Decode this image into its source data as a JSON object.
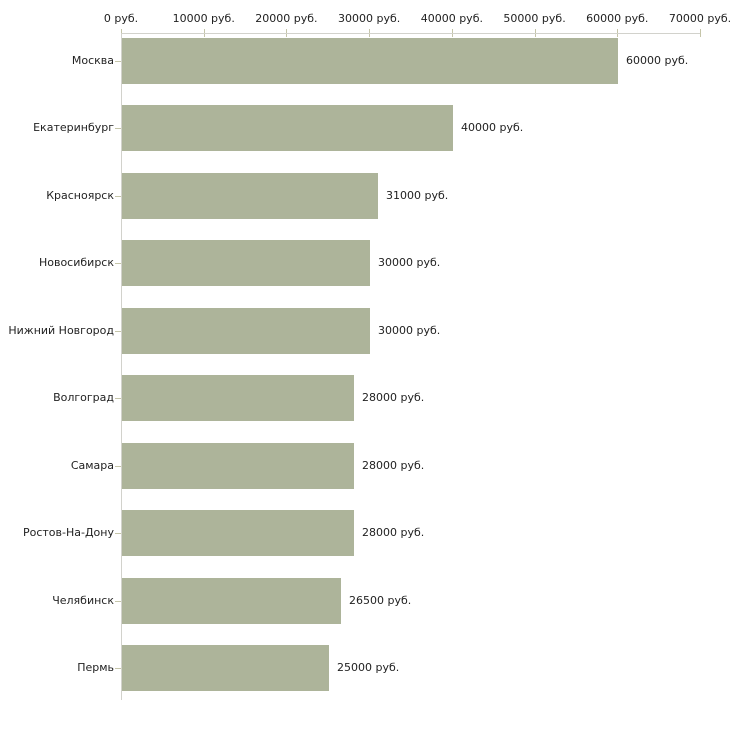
{
  "chart_data": {
    "type": "bar",
    "orientation": "horizontal",
    "title": "",
    "xlabel": "",
    "ylabel": "",
    "categories": [
      "Москва",
      "Екатеринбург",
      "Красноярск",
      "Новосибирск",
      "Нижний Новгород",
      "Волгоград",
      "Самара",
      "Ростов-На-Дону",
      "Челябинск",
      "Пермь"
    ],
    "values": [
      60000,
      40000,
      31000,
      30000,
      30000,
      28000,
      28000,
      28000,
      26500,
      25000
    ],
    "value_labels": [
      "60000 руб.",
      "40000 руб.",
      "31000 руб.",
      "30000 руб.",
      "30000 руб.",
      "28000 руб.",
      "28000 руб.",
      "28000 руб.",
      "26500 руб.",
      "25000 руб."
    ],
    "x_ticks": [
      0,
      10000,
      20000,
      30000,
      40000,
      50000,
      60000,
      70000
    ],
    "x_tick_labels": [
      "0 руб.",
      "10000 руб.",
      "20000 руб.",
      "30000 руб.",
      "40000 руб.",
      "50000 руб.",
      "60000 руб.",
      "70000 руб."
    ],
    "xlim": [
      0,
      70000
    ],
    "grid": false,
    "legend": "none",
    "colors": {
      "bar_fill": "#adb49a",
      "axis_line": "#d2d2cc",
      "tick_mark": "#c5c5a9",
      "text": "#222222",
      "background": "#ffffff"
    }
  }
}
